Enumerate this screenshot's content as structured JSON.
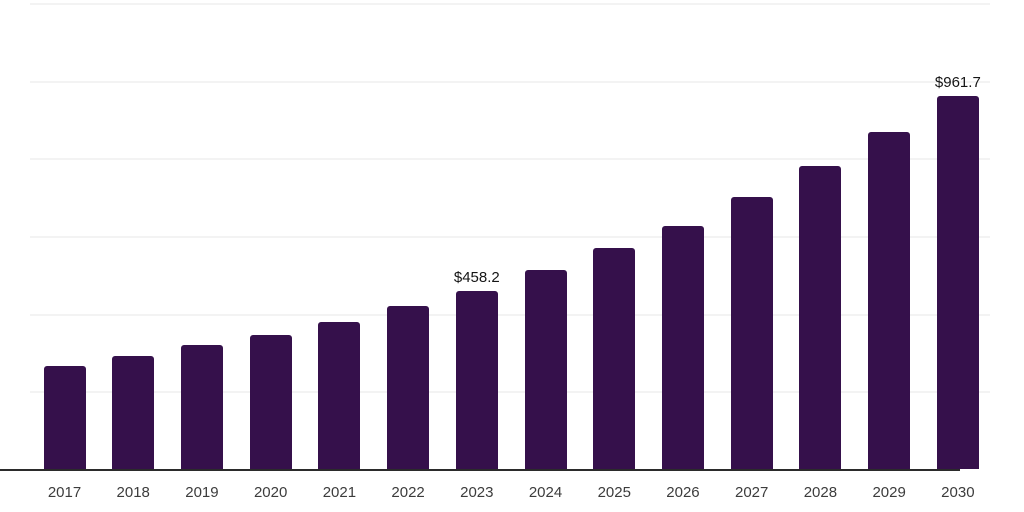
{
  "chart_data": {
    "type": "bar",
    "title": "",
    "xlabel": "",
    "ylabel": "",
    "categories": [
      "2017",
      "2018",
      "2019",
      "2020",
      "2021",
      "2022",
      "2023",
      "2024",
      "2025",
      "2026",
      "2027",
      "2028",
      "2029",
      "2030"
    ],
    "values": [
      264.9,
      290.1,
      318.6,
      344.2,
      377.6,
      418.7,
      458.2,
      511.2,
      570.3,
      626.8,
      701.3,
      781.0,
      868.3,
      961.7
    ],
    "annotations": [
      {
        "category": "2023",
        "index": 6,
        "text": "$458.2"
      },
      {
        "category": "2030",
        "index": 13,
        "text": "$961.7"
      }
    ],
    "ylim": [
      0,
      1200
    ],
    "gridlines": [
      200,
      400,
      600,
      800,
      1000,
      1200
    ],
    "grid_visible": true,
    "legend_position": "none",
    "colors": {
      "bar": "#35104b",
      "grid": "#f3f3f3",
      "axis": "#2b2b2b",
      "tick_label": "#3c3c3c",
      "data_label": "#151515",
      "background": "#ffffff"
    }
  }
}
